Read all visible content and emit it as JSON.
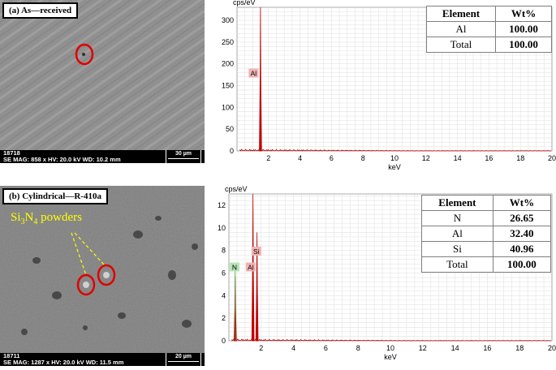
{
  "panels": [
    {
      "label": "(a) As—received",
      "sem": {
        "id": "18718",
        "meta": "SE  MAG: 858 x  HV: 20.0 kV  WD: 10.2 mm",
        "scale": "30 µm"
      },
      "table": {
        "headers": [
          "Element",
          "Wt%"
        ],
        "rows": [
          [
            "Al",
            "100.00"
          ],
          [
            "Total",
            "100.00"
          ]
        ]
      }
    },
    {
      "label": "(b) Cylindrical—R-410a",
      "sem": {
        "id": "18711",
        "meta": "SE  MAG: 1287 x  HV: 20.0 kV  WD: 11.5 mm",
        "scale": "20 µm"
      },
      "annotation": {
        "prefix": "Si",
        "sub1": "3",
        "mid": "N",
        "sub2": "4",
        "suffix": " powders"
      },
      "table": {
        "headers": [
          "Element",
          "Wt%"
        ],
        "rows": [
          [
            "N",
            "26.65"
          ],
          [
            "Al",
            "32.40"
          ],
          [
            "Si",
            "40.96"
          ],
          [
            "Total",
            "100.00"
          ]
        ]
      }
    }
  ],
  "chart_data": [
    {
      "type": "line",
      "ylabel": "cps/eV",
      "xlabel": "keV",
      "xlim": [
        0,
        20
      ],
      "ylim": [
        0,
        330
      ],
      "xticks": [
        2,
        4,
        6,
        8,
        10,
        12,
        14,
        16,
        18,
        20
      ],
      "yticks": [
        0,
        50,
        100,
        150,
        200,
        250,
        300
      ],
      "grid": true,
      "color": "#c00000",
      "peaks": [
        {
          "x": 1.49,
          "y": 330,
          "label": "Al"
        }
      ],
      "peak_labels": [
        {
          "text": "Al",
          "x": 1.0,
          "y": 178
        }
      ]
    },
    {
      "type": "line",
      "ylabel": "cps/eV",
      "xlabel": "keV",
      "xlim": [
        0,
        20
      ],
      "ylim": [
        0,
        13
      ],
      "xticks": [
        2,
        4,
        6,
        8,
        10,
        12,
        14,
        16,
        18,
        20
      ],
      "yticks": [
        0,
        2,
        4,
        6,
        8,
        10,
        12
      ],
      "grid": true,
      "color": "#c00000",
      "peaks": [
        {
          "x": 0.39,
          "y": 5.7,
          "label": "N"
        },
        {
          "x": 1.49,
          "y": 13,
          "label": "Al"
        },
        {
          "x": 1.74,
          "y": 9.6,
          "label": "Si"
        }
      ],
      "peak_labels": [
        {
          "text": "N",
          "x": 0.3,
          "y": 6.5
        },
        {
          "text": "Al",
          "x": 1.3,
          "y": 6.5
        },
        {
          "text": "Si",
          "x": 1.65,
          "y": 7.9
        }
      ]
    }
  ]
}
